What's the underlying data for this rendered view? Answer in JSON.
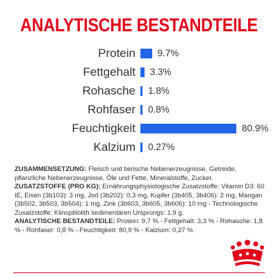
{
  "title": "ANALYTISCHE BESTANDTEILE",
  "colors": {
    "accent": "#e2001a",
    "bar": "#2266e6",
    "text": "#333333"
  },
  "chart_data": {
    "type": "bar",
    "orientation": "horizontal",
    "title": "",
    "categories": [
      "Protein",
      "Fettgehalt",
      "Rohasche",
      "Rohfaser",
      "Feuchtigkeit",
      "Kalzium"
    ],
    "values": [
      9.7,
      3.3,
      1.8,
      0.8,
      80.9,
      0.27
    ],
    "value_labels": [
      "9.7%",
      "3.3%",
      "1.8%",
      "0.8%",
      "80.9%",
      "0.27%"
    ],
    "unit": "%",
    "xlim": [
      0,
      80.9
    ],
    "grid": false,
    "legend": "none"
  },
  "composition": {
    "label": "ZUSAMMENSETZUNG:",
    "text": "Fleisch und tierische Nebenerzeugnisse, Getreide, pflanzliche Nebenerzeugnisse, Öle und Fette, Mineralstoffe, Zucker."
  },
  "additives": {
    "label": "ZUSATZSTOFFE (PRO KG):",
    "text": "Ernährungsphysiologische Zusatzstoffe: Vitamin D3: 60 IE, Eisen (3b103): 3 mg, Jod (3b202): 0,3 mg, Kupfer (3b405, 3b406): 2 mg, Mangan (3b502, 3b503, 3b504): 1 mg, Zink (3b603, 3b605, 3b606): 10 mg - Technologische Zusatzstoffe: Klinoptilolith sedimentären Ursprungs: 1,9 g."
  },
  "constituents": {
    "label": "ANALYTISCHE BESTANDTEILE:",
    "text": "Protein: 9,7 % - Fettgehalt: 3,3 % - Rohasche: 1,8 % - Rohfaser: 0,8 % - Feuchtigkeit: 80,9 % - Kalzium: 0,27 %."
  },
  "logo": {
    "icon": "royal-canin-crown-logo"
  }
}
